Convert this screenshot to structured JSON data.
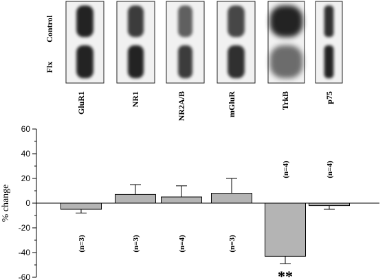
{
  "row_labels": {
    "top": "Control",
    "bottom": "Flx"
  },
  "chart_data": {
    "type": "bar",
    "categories": [
      "GluR1",
      "NR1",
      "NR2A/B",
      "mGluR",
      "TrkB",
      "p75"
    ],
    "values": [
      -5,
      7,
      5,
      8,
      -43,
      -2
    ],
    "errors": [
      3,
      8,
      9,
      12,
      6,
      3
    ],
    "n_labels": [
      "(n=3)",
      "(n=3)",
      "(n=4)",
      "(n=3)",
      "(n=4)",
      "(n=4)"
    ],
    "significance": {
      "category": "TrkB",
      "text": "**"
    },
    "ylabel": "% change",
    "ylim": [
      -60,
      60
    ],
    "yticks": [
      -60,
      -40,
      -20,
      0,
      20,
      40,
      60
    ],
    "bar_color": "#b4b4b4",
    "grid": false
  }
}
